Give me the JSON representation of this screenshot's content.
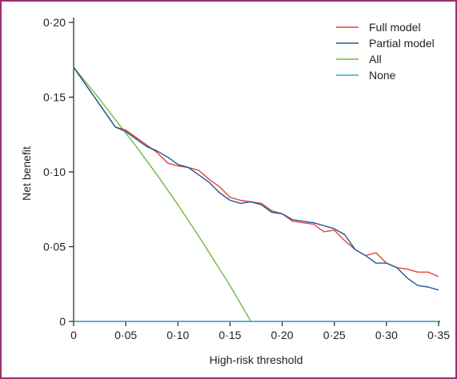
{
  "chart_data": {
    "type": "line",
    "title": "",
    "xlabel": "High-risk threshold",
    "ylabel": "Net benefit",
    "xlim": [
      0,
      0.35
    ],
    "ylim": [
      0,
      0.2
    ],
    "xticks": [
      0,
      0.05,
      0.1,
      0.15,
      0.2,
      0.25,
      0.3,
      0.35
    ],
    "xtick_labels": [
      "0",
      "0·05",
      "0·10",
      "0·15",
      "0·20",
      "0·25",
      "0·30",
      "0·35"
    ],
    "yticks": [
      0,
      0.05,
      0.1,
      0.15,
      0.2
    ],
    "ytick_labels": [
      "0",
      "0·05",
      "0·10",
      "0·15",
      "0·20"
    ],
    "grid": false,
    "legend_position": "top-right",
    "series": [
      {
        "name": "Full model",
        "color": "#e8423b",
        "x": [
          0,
          0.01,
          0.02,
          0.03,
          0.04,
          0.05,
          0.06,
          0.07,
          0.08,
          0.09,
          0.1,
          0.11,
          0.12,
          0.13,
          0.14,
          0.15,
          0.16,
          0.17,
          0.18,
          0.19,
          0.2,
          0.21,
          0.22,
          0.23,
          0.24,
          0.25,
          0.26,
          0.27,
          0.28,
          0.29,
          0.3,
          0.31,
          0.32,
          0.33,
          0.34,
          0.35
        ],
        "y": [
          0.17,
          0.16,
          0.15,
          0.14,
          0.13,
          0.128,
          0.123,
          0.118,
          0.113,
          0.106,
          0.104,
          0.103,
          0.101,
          0.095,
          0.09,
          0.083,
          0.081,
          0.08,
          0.079,
          0.074,
          0.072,
          0.067,
          0.066,
          0.065,
          0.06,
          0.061,
          0.054,
          0.048,
          0.044,
          0.046,
          0.039,
          0.036,
          0.035,
          0.033,
          0.033,
          0.03
        ]
      },
      {
        "name": "Partial model",
        "color": "#1b5a96",
        "x": [
          0,
          0.01,
          0.02,
          0.03,
          0.04,
          0.05,
          0.06,
          0.07,
          0.08,
          0.09,
          0.1,
          0.11,
          0.12,
          0.13,
          0.14,
          0.15,
          0.16,
          0.17,
          0.18,
          0.19,
          0.2,
          0.21,
          0.22,
          0.23,
          0.24,
          0.25,
          0.26,
          0.27,
          0.28,
          0.29,
          0.3,
          0.31,
          0.32,
          0.33,
          0.34,
          0.35
        ],
        "y": [
          0.17,
          0.16,
          0.15,
          0.14,
          0.13,
          0.127,
          0.122,
          0.117,
          0.114,
          0.11,
          0.105,
          0.103,
          0.098,
          0.093,
          0.086,
          0.081,
          0.079,
          0.08,
          0.078,
          0.073,
          0.072,
          0.068,
          0.067,
          0.066,
          0.064,
          0.062,
          0.058,
          0.048,
          0.044,
          0.039,
          0.039,
          0.036,
          0.029,
          0.024,
          0.023,
          0.021
        ]
      },
      {
        "name": "All",
        "color": "#74b843",
        "x": [
          0,
          0.02,
          0.04,
          0.05,
          0.06,
          0.08,
          0.1,
          0.12,
          0.14,
          0.15,
          0.16,
          0.17
        ],
        "y": [
          0.17,
          0.153,
          0.135,
          0.126,
          0.117,
          0.098,
          0.078,
          0.057,
          0.035,
          0.024,
          0.012,
          0.0
        ]
      },
      {
        "name": "None",
        "color": "#36a8d4",
        "x": [
          0,
          0.35
        ],
        "y": [
          0,
          0
        ]
      }
    ]
  }
}
